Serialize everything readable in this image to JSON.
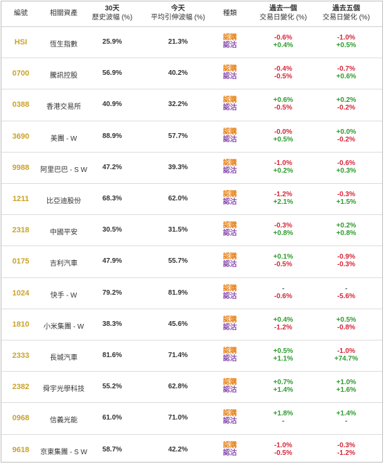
{
  "headers": {
    "code": "編號",
    "asset": "相關資產",
    "hv_line1": "30天",
    "hv_line2": "歷史波幅 (%)",
    "iv_line1": "今天",
    "iv_line2": "平均引伸波幅 (%)",
    "type": "種類",
    "d1_line1": "過去一個",
    "d1_line2": "交易日變化 (%)",
    "d5_line1": "過去五個",
    "d5_line2": "交易日變化 (%)"
  },
  "labels": {
    "bull": "認購",
    "bear": "認沽"
  },
  "rows": [
    {
      "code": "HSI",
      "asset": "恆生指數",
      "hv": "25.9%",
      "iv": "21.3%",
      "d1_bull": "-0.6%",
      "d1_bear": "+0.4%",
      "d5_bull": "-1.0%",
      "d5_bear": "+0.5%"
    },
    {
      "code": "0700",
      "asset": "騰訊控股",
      "hv": "56.9%",
      "iv": "40.2%",
      "d1_bull": "-0.4%",
      "d1_bear": "-0.5%",
      "d5_bull": "-0.7%",
      "d5_bear": "+0.6%"
    },
    {
      "code": "0388",
      "asset": "香港交易所",
      "hv": "40.9%",
      "iv": "32.2%",
      "d1_bull": "+0.6%",
      "d1_bear": "-0.5%",
      "d5_bull": "+0.2%",
      "d5_bear": "-0.2%"
    },
    {
      "code": "3690",
      "asset": "美團 - W",
      "hv": "88.9%",
      "iv": "57.7%",
      "d1_bull": "-0.0%",
      "d1_bear": "+0.5%",
      "d5_bull": "+0.0%",
      "d5_bear": "-0.2%"
    },
    {
      "code": "9988",
      "asset": "阿里巴巴 - S W",
      "hv": "47.2%",
      "iv": "39.3%",
      "d1_bull": "-1.0%",
      "d1_bear": "+0.2%",
      "d5_bull": "-0.6%",
      "d5_bear": "+0.3%"
    },
    {
      "code": "1211",
      "asset": "比亞迪股份",
      "hv": "68.3%",
      "iv": "62.0%",
      "d1_bull": "-1.2%",
      "d1_bear": "+2.1%",
      "d5_bull": "-0.3%",
      "d5_bear": "+1.5%"
    },
    {
      "code": "2318",
      "asset": "中國平安",
      "hv": "30.5%",
      "iv": "31.5%",
      "d1_bull": "-0.3%",
      "d1_bear": "+0.8%",
      "d5_bull": "+0.2%",
      "d5_bear": "+0.8%"
    },
    {
      "code": "0175",
      "asset": "吉利汽車",
      "hv": "47.9%",
      "iv": "55.7%",
      "d1_bull": "+0.1%",
      "d1_bear": "-0.5%",
      "d5_bull": "-0.9%",
      "d5_bear": "-0.3%"
    },
    {
      "code": "1024",
      "asset": "快手 - W",
      "hv": "79.2%",
      "iv": "81.9%",
      "d1_bull": "-",
      "d1_bear": "-0.6%",
      "d5_bull": "-",
      "d5_bear": "-5.6%"
    },
    {
      "code": "1810",
      "asset": "小米集團 - W",
      "hv": "38.3%",
      "iv": "45.6%",
      "d1_bull": "+0.4%",
      "d1_bear": "-1.2%",
      "d5_bull": "+0.5%",
      "d5_bear": "-0.8%"
    },
    {
      "code": "2333",
      "asset": "長城汽車",
      "hv": "81.6%",
      "iv": "71.4%",
      "d1_bull": "+0.5%",
      "d1_bear": "+1.1%",
      "d5_bull": "-1.0%",
      "d5_bear": "+74.7%"
    },
    {
      "code": "2382",
      "asset": "舜宇光學科技",
      "hv": "55.2%",
      "iv": "62.8%",
      "d1_bull": "+0.7%",
      "d1_bear": "+1.4%",
      "d5_bull": "+1.0%",
      "d5_bear": "+1.6%"
    },
    {
      "code": "0968",
      "asset": "信義光能",
      "hv": "61.0%",
      "iv": "71.0%",
      "d1_bull": "+1.8%",
      "d1_bear": "-",
      "d5_bull": "+1.4%",
      "d5_bear": "-"
    },
    {
      "code": "9618",
      "asset": "京東集團 - S W",
      "hv": "58.7%",
      "iv": "42.2%",
      "d1_bull": "-1.0%",
      "d1_bear": "-0.5%",
      "d5_bull": "-0.3%",
      "d5_bear": "-1.2%"
    }
  ],
  "colors": {
    "code": "#c9a227",
    "bull": "#e8841a",
    "bear": "#8a4fb0",
    "positive": "#2e9b2e",
    "negative": "#d6283a"
  }
}
